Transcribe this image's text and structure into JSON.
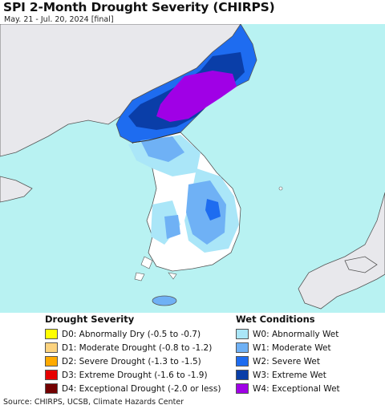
{
  "header": {
    "title": "SPI 2-Month Drought Severity (CHIRPS)",
    "subtitle": "May. 21 - Jul. 20, 2024 [final]"
  },
  "legend_drought": {
    "title": "Drought Severity",
    "items": [
      {
        "label": "D0: Abnormally Dry (-0.5 to -0.7)",
        "color": "#ffff00"
      },
      {
        "label": "D1: Moderate Drought (-0.8 to -1.2)",
        "color": "#fcd37f"
      },
      {
        "label": "D2: Severe Drought (-1.3 to -1.5)",
        "color": "#ffaa00"
      },
      {
        "label": "D3: Extreme Drought (-1.6 to -1.9)",
        "color": "#e60000"
      },
      {
        "label": "D4: Exceptional Drought (-2.0 or less)",
        "color": "#730000"
      }
    ]
  },
  "legend_wet": {
    "title": "Wet Conditions",
    "items": [
      {
        "label": "W0: Abnormally Wet",
        "color": "#aae6f8"
      },
      {
        "label": "W1: Moderate Wet",
        "color": "#6fb1f5"
      },
      {
        "label": "W2: Severe Wet",
        "color": "#1e6cf0"
      },
      {
        "label": "W3: Extreme Wet",
        "color": "#0a3ea8"
      },
      {
        "label": "W4: Exceptional Wet",
        "color": "#a000e6"
      }
    ]
  },
  "map": {
    "colors": {
      "sea": "#b8f2f2",
      "land": "#ffffff",
      "foreign_land": "#e8e8ec",
      "border": "#555555"
    }
  },
  "footer": {
    "source": "Source: CHIRPS, UCSB, Climate Hazards Center"
  }
}
